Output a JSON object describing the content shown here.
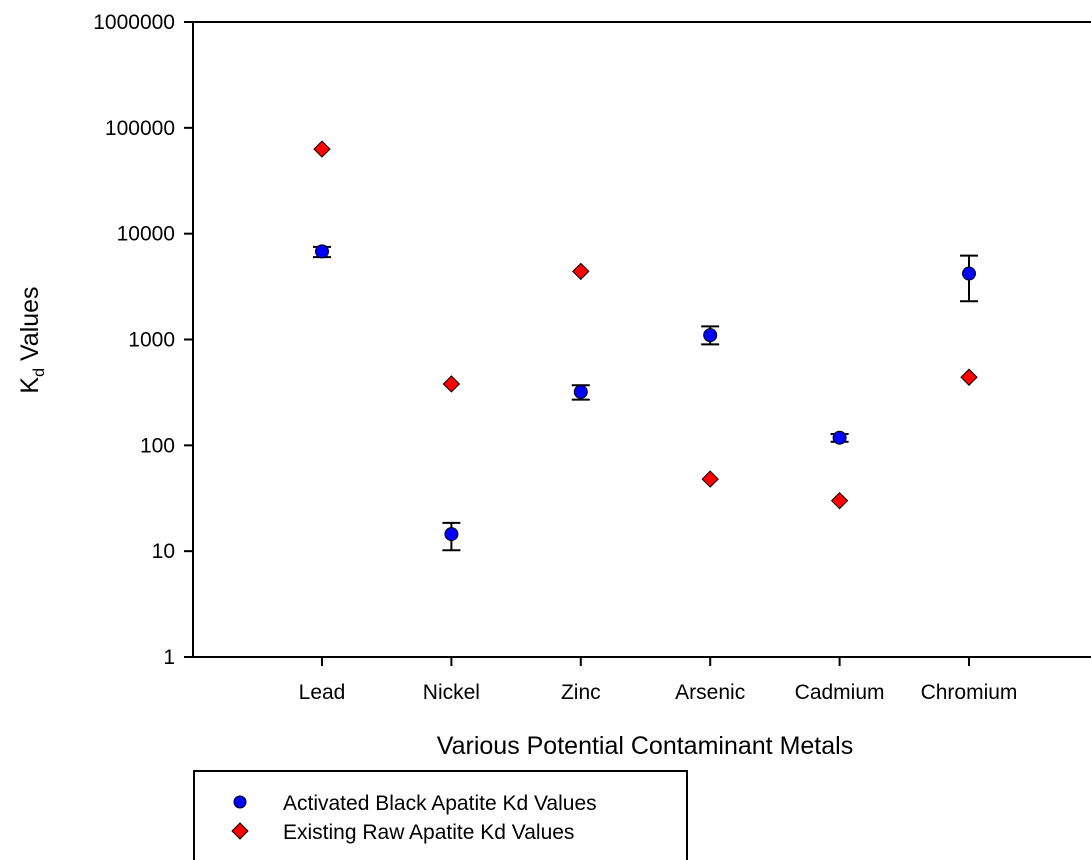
{
  "chart_data": {
    "type": "scatter",
    "xlabel": "Various Potential Contaminant Metals",
    "ylabel_main": "K",
    "ylabel_sub": "d",
    "ylabel_rest": " Values",
    "yscale": "log",
    "ylim": [
      1,
      1000000
    ],
    "yticks": [
      1,
      10,
      100,
      1000,
      10000,
      100000,
      1000000
    ],
    "ytick_labels": [
      "1",
      "10",
      "100",
      "1000",
      "10000",
      "100000",
      "1000000"
    ],
    "categories": [
      "Lead",
      "Nickel",
      "Zinc",
      "Arsenic",
      "Cadmium",
      "Chromium"
    ],
    "grid": false,
    "legend_position": "below",
    "series": [
      {
        "name": "Activated Black Apatite Kd Values",
        "marker": "circle",
        "color": "#0000ff",
        "values": [
          6800,
          14.5,
          320,
          1100,
          118,
          4200
        ],
        "err_low": [
          6000,
          10.2,
          270,
          900,
          108,
          2300
        ],
        "err_high": [
          7500,
          18.5,
          370,
          1330,
          128,
          6200
        ]
      },
      {
        "name": "Existing Raw Apatite Kd Values",
        "marker": "diamond",
        "color": "#ff0000",
        "values": [
          63000,
          380,
          4400,
          48,
          30,
          440
        ]
      }
    ]
  }
}
